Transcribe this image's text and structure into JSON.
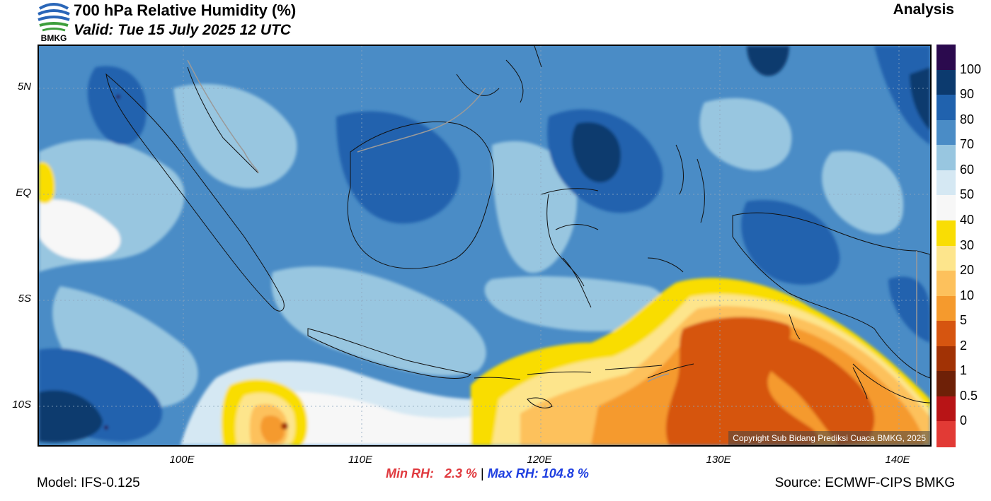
{
  "header": {
    "logo_text": "BMKG",
    "title": "700 hPa Relative Humidity (%)",
    "valid": "Valid: Tue 15 July 2025 12 UTC",
    "mode": "Analysis"
  },
  "map": {
    "copyright": "Copyright Sub Bidang Prediksi Cuaca BMKG, 2025",
    "lat_labels": [
      "5N",
      "EQ",
      "5S",
      "10S"
    ],
    "lon_labels": [
      "100E",
      "110E",
      "120E",
      "130E",
      "140E"
    ]
  },
  "stats": {
    "min_label": "Min RH:",
    "min_value": "2.3 %",
    "separator": "|",
    "max_label": "Max RH:",
    "max_value": "104.8 %"
  },
  "footer": {
    "model": "Model: IFS-0.125",
    "source": "Source: ECMWF-CIPS BMKG"
  },
  "colorbar": {
    "labels": [
      "100",
      "90",
      "80",
      "70",
      "60",
      "50",
      "40",
      "30",
      "20",
      "10",
      "5",
      "2",
      "1",
      "0.5",
      "0"
    ],
    "colors": [
      "#2b0a4e",
      "#0c3a6e",
      "#2062ae",
      "#4a8cc6",
      "#98c6e0",
      "#d5e8f3",
      "#f7f7f7",
      "#f9dd04",
      "#fde58c",
      "#fdc15c",
      "#f59a2d",
      "#d65510",
      "#a13205",
      "#6e2007",
      "#b81416",
      "#e23a35"
    ]
  }
}
